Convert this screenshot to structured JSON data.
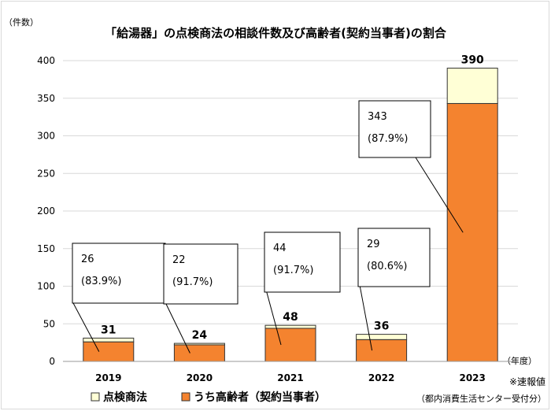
{
  "chart_data": {
    "type": "bar",
    "title": "「給湯器」の点検商法の相談件数及び高齢者(契約当事者)の割合",
    "y_unit_label": "（件数）",
    "x_unit_label": "（年度）",
    "ylim": [
      0,
      400
    ],
    "y_ticks": [
      "0",
      "50",
      "100",
      "150",
      "200",
      "250",
      "300",
      "350",
      "400"
    ],
    "y_tick_values": [
      0,
      50,
      100,
      150,
      200,
      250,
      300,
      350,
      400
    ],
    "categories": [
      "2019",
      "2020",
      "2021",
      "2022",
      "2023"
    ],
    "stacked": true,
    "grid": true,
    "series": [
      {
        "name": "うち高齢者（契約当事者）",
        "values": [
          26,
          22,
          44,
          29,
          343
        ],
        "color": "#f4832f"
      },
      {
        "name": "点検商法",
        "values": [
          5,
          2,
          4,
          7,
          47
        ],
        "color": "#ffffd6"
      }
    ],
    "totals": [
      "31",
      "24",
      "48",
      "36",
      "390"
    ],
    "callouts": [
      {
        "count": "26",
        "percent": "(83.9%)"
      },
      {
        "count": "22",
        "percent": "(91.7%)"
      },
      {
        "count": "44",
        "percent": "(91.7%)"
      },
      {
        "count": "29",
        "percent": "(80.6%)"
      },
      {
        "count": "343",
        "percent": "(87.9%)"
      }
    ],
    "legend_position": "bottom",
    "note": "※速報値",
    "source": "（都内消費生活センター受付分）"
  }
}
